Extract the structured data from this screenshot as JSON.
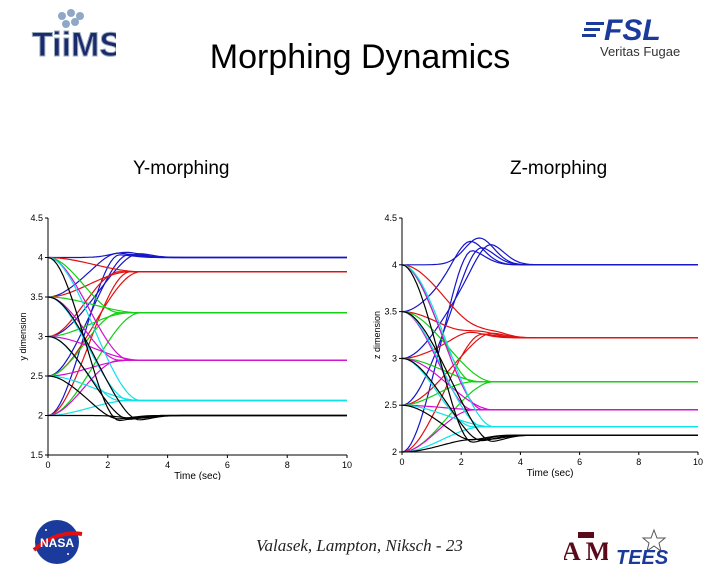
{
  "slide": {
    "title": "Morphing Dynamics",
    "footer": "Valasek, Lampton, Niksch - 23",
    "logos": {
      "top_left": "TiiMS",
      "top_right_mark": "FSL",
      "top_right_motto": "Veritas Fugae",
      "bottom_left": "NASA",
      "bottom_mid": "A M",
      "bottom_right": "TEES"
    },
    "colors": {
      "blue": "#1515c8",
      "red": "#e01010",
      "green": "#10d010",
      "magenta": "#d010d0",
      "cyan": "#10e0e8",
      "black": "#000000"
    }
  },
  "chart_data": [
    {
      "type": "line",
      "title": "Y-morphing",
      "xlabel": "Time (sec)",
      "ylabel": "y dimension",
      "xlim": [
        0,
        10
      ],
      "ylim": [
        1.5,
        4.5
      ],
      "xticks": [
        "0",
        "2",
        "4",
        "6",
        "8",
        "10"
      ],
      "yticks": [
        "1.5",
        "2",
        "2.5",
        "3",
        "3.5",
        "4",
        "4.5"
      ],
      "grid": false,
      "legend": "none",
      "settled_levels": [
        {
          "color": "blue",
          "value": 4.0
        },
        {
          "color": "red",
          "value": 3.82
        },
        {
          "color": "green",
          "value": 3.3
        },
        {
          "color": "magenta",
          "value": 2.7
        },
        {
          "color": "cyan",
          "value": 2.19
        },
        {
          "color": "black",
          "value": 2.0
        }
      ],
      "initial_levels": [
        2.0,
        2.5,
        3.0,
        3.5,
        4.0
      ],
      "overshoot": {
        "blue": 4.05,
        "black": 1.95
      }
    },
    {
      "type": "line",
      "title": "Z-morphing",
      "xlabel": "Time (sec)",
      "ylabel": "z dimension",
      "xlim": [
        0,
        10
      ],
      "ylim": [
        2,
        4.5
      ],
      "xticks": [
        "0",
        "2",
        "4",
        "6",
        "8",
        "10"
      ],
      "yticks": [
        "2",
        "2.5",
        "3",
        "3.5",
        "4",
        "4.5"
      ],
      "grid": false,
      "legend": "none",
      "settled_levels": [
        {
          "color": "blue",
          "value": 4.0
        },
        {
          "color": "red",
          "value": 3.22
        },
        {
          "color": "green",
          "value": 2.75
        },
        {
          "color": "magenta",
          "value": 2.45
        },
        {
          "color": "cyan",
          "value": 2.27
        },
        {
          "color": "black",
          "value": 2.18
        }
      ],
      "initial_levels": [
        2.0,
        2.5,
        3.0,
        3.5,
        4.0
      ],
      "overshoot": {
        "blue": 4.22,
        "red": 3.28,
        "black": 2.12
      }
    }
  ]
}
